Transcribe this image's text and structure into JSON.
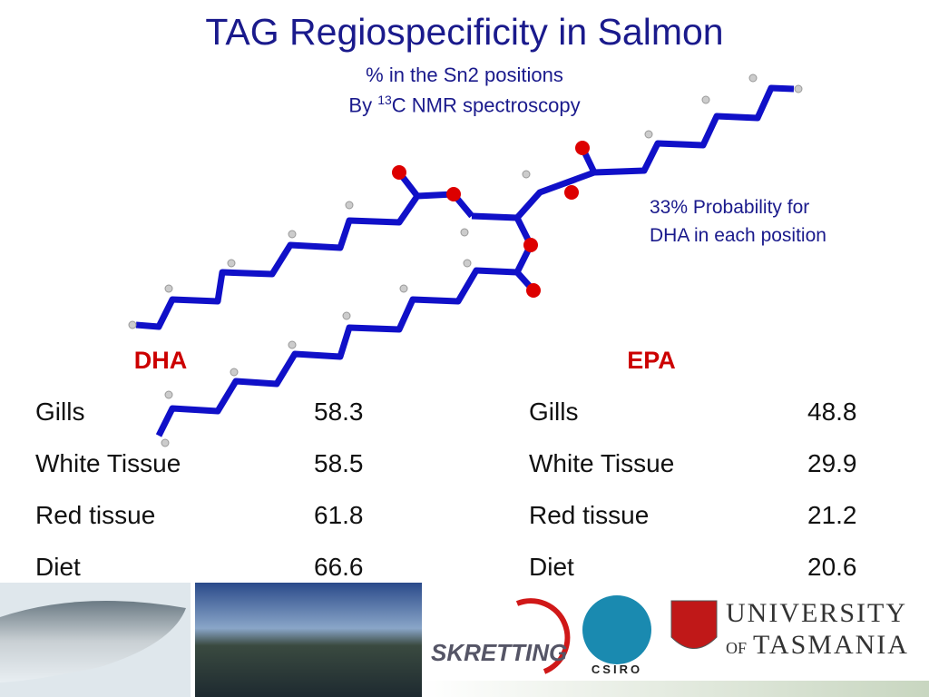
{
  "title": "TAG Regiospecificity in Salmon",
  "subtitle": {
    "line1": "% in the Sn2 positions",
    "line2_prefix": "By ",
    "line2_superscript": "13",
    "line2_suffix": "C NMR spectroscopy"
  },
  "annotation": {
    "line1": "33% Probability for",
    "line2": "DHA in each position"
  },
  "tables": [
    {
      "header": "DHA",
      "rows": [
        [
          "Gills",
          58.3
        ],
        [
          "White Tissue",
          58.5
        ],
        [
          "Red tissue",
          61.8
        ],
        [
          "Diet",
          66.6
        ]
      ]
    },
    {
      "header": "EPA",
      "rows": [
        [
          "Gills",
          48.8
        ],
        [
          "White Tissue",
          29.9
        ],
        [
          "Red tissue",
          21.2
        ],
        [
          "Diet",
          20.6
        ]
      ]
    }
  ],
  "logos": {
    "skretting": "SKRETTING",
    "csiro": "CSIRO",
    "utas_line1": "UNIVERSITY",
    "utas_of": "OF",
    "utas_line2": "TASMANIA"
  }
}
